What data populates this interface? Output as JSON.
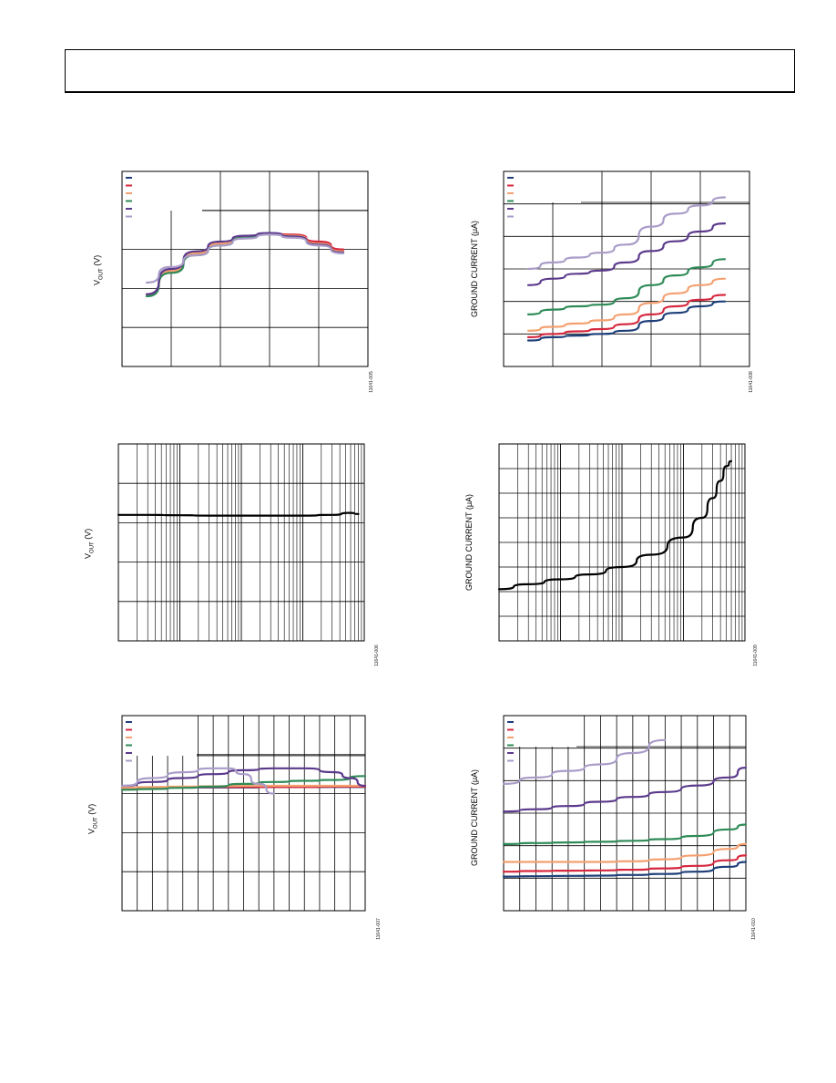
{
  "colors": {
    "series": [
      "#1f3f7a",
      "#d6283e",
      "#f4a070",
      "#2e8b57",
      "#5b3a8c",
      "#a99cc8"
    ],
    "axis": "#000000",
    "grid": "#000000",
    "single": "#000000"
  },
  "charts": [
    {
      "id": "vout-vs-temperature",
      "ylabel": "Vₒᵤₜ (V)",
      "ylabel_main": "V",
      "ylabel_sub": "OUT",
      "ylabel_unit": " (V)",
      "fig_id": "11641-005",
      "chart_data": {
        "type": "line",
        "xscale": "linear",
        "grid": true,
        "legend": "top-left",
        "xlim": [
          0,
          5
        ],
        "ylim": [
          0,
          5
        ],
        "series": [
          {
            "x": [
              0.5,
              1,
              1.5,
              2,
              2.5,
              3,
              3.5,
              4,
              4.5
            ],
            "y": [
              1.85,
              2.45,
              2.9,
              3.15,
              3.3,
              3.4,
              3.35,
              3.15,
              2.95
            ]
          },
          {
            "x": [
              0.5,
              1,
              1.5,
              2,
              2.5,
              3,
              3.5,
              4,
              4.5
            ],
            "y": [
              1.85,
              2.45,
              2.9,
              3.15,
              3.3,
              3.4,
              3.38,
              3.2,
              3.0
            ]
          },
          {
            "x": [
              0.5,
              1,
              1.5,
              2,
              2.5,
              3,
              3.5,
              4,
              4.5
            ],
            "y": [
              1.85,
              2.45,
              2.9,
              3.15,
              3.3,
              3.4,
              3.35,
              3.15,
              2.95
            ]
          },
          {
            "x": [
              0.5,
              1,
              1.5,
              2,
              2.5,
              3,
              3.5,
              4,
              4.5
            ],
            "y": [
              1.8,
              2.4,
              2.85,
              3.1,
              3.3,
              3.4,
              3.33,
              3.12,
              2.92
            ]
          },
          {
            "x": [
              0.5,
              1,
              1.5,
              2,
              2.5,
              3,
              3.5,
              4,
              4.5
            ],
            "y": [
              1.85,
              2.5,
              2.95,
              3.2,
              3.35,
              3.42,
              3.33,
              3.12,
              2.92
            ]
          },
          {
            "x": [
              0.5,
              1,
              1.5,
              2,
              2.5,
              3,
              3.5,
              4,
              4.5
            ],
            "y": [
              2.15,
              2.55,
              2.85,
              3.1,
              3.28,
              3.38,
              3.3,
              3.1,
              2.9
            ]
          }
        ]
      }
    },
    {
      "id": "ground-current-vs-temperature",
      "ylabel_main": "GROUND CURRENT (μA)",
      "fig_id": "11641-008",
      "chart_data": {
        "type": "line",
        "xscale": "linear",
        "grid": true,
        "legend": "top-left",
        "xlim": [
          0,
          5
        ],
        "ylim": [
          0,
          6
        ],
        "series": [
          {
            "x": [
              0.5,
              1,
              1.5,
              2,
              2.5,
              3,
              3.5,
              4,
              4.5
            ],
            "y": [
              0.8,
              0.9,
              0.95,
              1.0,
              1.1,
              1.4,
              1.65,
              1.85,
              2.0
            ]
          },
          {
            "x": [
              0.5,
              1,
              1.5,
              2,
              2.5,
              3,
              3.5,
              4,
              4.5
            ],
            "y": [
              0.9,
              1.0,
              1.08,
              1.15,
              1.3,
              1.6,
              1.85,
              2.05,
              2.2
            ]
          },
          {
            "x": [
              0.5,
              1,
              1.5,
              2,
              2.5,
              3,
              3.5,
              4,
              4.5
            ],
            "y": [
              1.1,
              1.22,
              1.32,
              1.42,
              1.6,
              1.95,
              2.25,
              2.5,
              2.7
            ]
          },
          {
            "x": [
              0.5,
              1,
              1.5,
              2,
              2.5,
              3,
              3.5,
              4,
              4.5
            ],
            "y": [
              1.6,
              1.75,
              1.85,
              1.9,
              2.1,
              2.5,
              2.8,
              3.05,
              3.3
            ]
          },
          {
            "x": [
              0.5,
              1,
              1.5,
              2,
              2.5,
              3,
              3.5,
              4,
              4.5
            ],
            "y": [
              2.5,
              2.7,
              2.85,
              2.95,
              3.2,
              3.55,
              3.85,
              4.15,
              4.4
            ]
          },
          {
            "x": [
              0.5,
              1,
              1.5,
              2,
              2.5,
              3,
              3.5,
              4,
              4.5
            ],
            "y": [
              3.0,
              3.2,
              3.35,
              3.5,
              3.75,
              4.3,
              4.7,
              4.95,
              5.2
            ]
          }
        ]
      }
    },
    {
      "id": "vout-vs-load-current",
      "ylabel_main": "V",
      "ylabel_sub": "OUT",
      "ylabel_unit": " (V)",
      "fig_id": "11641-006",
      "chart_data": {
        "type": "line",
        "xscale": "log",
        "grid": true,
        "xlim": [
          1,
          10000
        ],
        "ylim": [
          0,
          5
        ],
        "series": [
          {
            "x": [
              1,
              3,
              10,
              30,
              100,
              300,
              1000,
              3000,
              6000,
              8000
            ],
            "y": [
              3.2,
              3.2,
              3.19,
              3.18,
              3.18,
              3.18,
              3.18,
              3.2,
              3.25,
              3.22
            ]
          }
        ]
      }
    },
    {
      "id": "ground-current-vs-load-current",
      "ylabel_main": "GROUND CURRENT (μA)",
      "fig_id": "11641-009",
      "chart_data": {
        "type": "line",
        "xscale": "log",
        "grid": true,
        "xlim": [
          1,
          10000
        ],
        "ylim": [
          0,
          8
        ],
        "series": [
          {
            "x": [
              1,
              3,
              10,
              30,
              100,
              300,
              1000,
              2000,
              3000,
              4000,
              5000,
              6000
            ],
            "y": [
              2.1,
              2.3,
              2.5,
              2.7,
              3.0,
              3.5,
              4.2,
              5.0,
              5.8,
              6.5,
              7.1,
              7.3
            ]
          }
        ]
      }
    },
    {
      "id": "vout-vs-input-voltage",
      "ylabel_main": "V",
      "ylabel_sub": "OUT",
      "ylabel_unit": " (V)",
      "fig_id": "11641-007",
      "chart_data": {
        "type": "line",
        "xscale": "linear",
        "grid": true,
        "legend": "top-left",
        "xlim": [
          0,
          16
        ],
        "ylim": [
          0,
          5
        ],
        "series": [
          {
            "x": [
              0,
              2,
              4,
              6,
              8,
              10,
              12,
              14,
              16
            ],
            "y": [
              3.15,
              3.15,
              3.16,
              3.16,
              3.16,
              3.17,
              3.17,
              3.17,
              3.17
            ]
          },
          {
            "x": [
              0,
              2,
              4,
              6,
              8,
              10,
              12,
              14,
              16
            ],
            "y": [
              3.15,
              3.16,
              3.16,
              3.17,
              3.17,
              3.17,
              3.17,
              3.18,
              3.18
            ]
          },
          {
            "x": [
              0,
              2,
              4,
              6,
              8,
              10,
              12,
              14,
              16
            ],
            "y": [
              3.15,
              3.17,
              3.18,
              3.19,
              3.2,
              3.2,
              3.2,
              3.2,
              3.2
            ]
          },
          {
            "x": [
              0,
              2,
              4,
              6,
              8,
              10,
              12,
              14,
              16
            ],
            "y": [
              3.1,
              3.12,
              3.15,
              3.18,
              3.25,
              3.3,
              3.33,
              3.35,
              3.45
            ]
          },
          {
            "x": [
              0,
              2,
              4,
              6,
              8,
              10,
              12,
              14,
              15,
              16
            ],
            "y": [
              3.2,
              3.3,
              3.4,
              3.5,
              3.6,
              3.65,
              3.65,
              3.55,
              3.4,
              3.2
            ]
          },
          {
            "x": [
              0,
              2,
              4,
              6,
              7,
              8,
              9,
              10
            ],
            "y": [
              3.2,
              3.4,
              3.55,
              3.65,
              3.65,
              3.5,
              3.25,
              3.0
            ]
          }
        ]
      }
    },
    {
      "id": "ground-current-vs-input-voltage",
      "ylabel_main": "GROUND CURRENT (μA)",
      "fig_id": "11641-010",
      "chart_data": {
        "type": "line",
        "xscale": "linear",
        "grid": true,
        "legend": "top-left",
        "xlim": [
          0,
          15
        ],
        "ylim": [
          0,
          6
        ],
        "series": [
          {
            "x": [
              0,
              2,
              4,
              6,
              8,
              10,
              12,
              14,
              15
            ],
            "y": [
              1.05,
              1.06,
              1.07,
              1.08,
              1.1,
              1.13,
              1.2,
              1.35,
              1.5
            ]
          },
          {
            "x": [
              0,
              2,
              4,
              6,
              8,
              10,
              12,
              14,
              15
            ],
            "y": [
              1.2,
              1.22,
              1.23,
              1.24,
              1.26,
              1.3,
              1.38,
              1.55,
              1.7
            ]
          },
          {
            "x": [
              0,
              2,
              4,
              6,
              8,
              10,
              12,
              14,
              15
            ],
            "y": [
              1.5,
              1.5,
              1.5,
              1.5,
              1.52,
              1.58,
              1.7,
              1.9,
              2.05
            ]
          },
          {
            "x": [
              0,
              2,
              4,
              6,
              8,
              10,
              12,
              14,
              15
            ],
            "y": [
              2.05,
              2.08,
              2.1,
              2.12,
              2.15,
              2.2,
              2.3,
              2.5,
              2.65
            ]
          },
          {
            "x": [
              0,
              2,
              4,
              6,
              8,
              10,
              12,
              14,
              15
            ],
            "y": [
              3.05,
              3.12,
              3.22,
              3.35,
              3.5,
              3.65,
              3.85,
              4.1,
              4.4
            ]
          },
          {
            "x": [
              0,
              2,
              4,
              6,
              8,
              10
            ],
            "y": [
              3.9,
              4.1,
              4.3,
              4.5,
              4.85,
              5.25
            ]
          }
        ]
      }
    }
  ]
}
